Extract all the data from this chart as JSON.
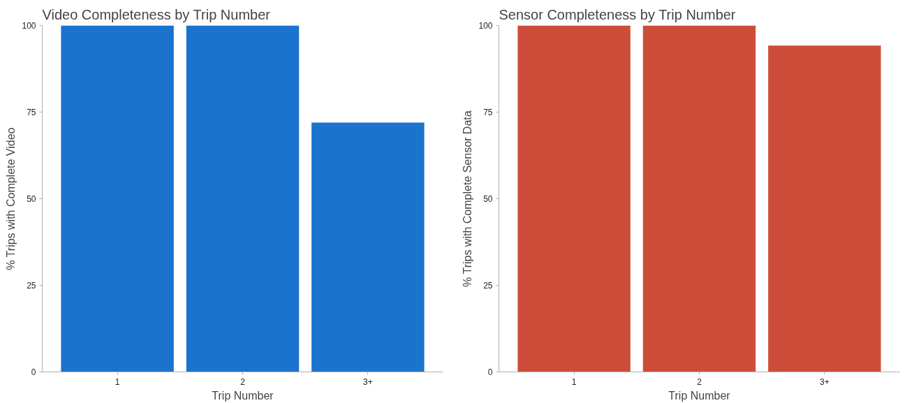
{
  "chart_data": [
    {
      "type": "bar",
      "title": "Video Completeness by Trip Number",
      "xlabel": "Trip Number",
      "ylabel": "% Trips with Complete Video",
      "categories": [
        "1",
        "2",
        "3+"
      ],
      "values": [
        100,
        100,
        72
      ],
      "color": "#1a73cc",
      "ylim": [
        0,
        100
      ],
      "yticks": [
        0,
        25,
        50,
        75,
        100
      ],
      "grid": false
    },
    {
      "type": "bar",
      "title": "Sensor Completeness by Trip Number",
      "xlabel": "Trip Number",
      "ylabel": "% Trips with Complete Sensor Data",
      "categories": [
        "1",
        "2",
        "3+"
      ],
      "values": [
        100,
        100,
        94.2
      ],
      "color": "#cc4e3a",
      "ylim": [
        0,
        100
      ],
      "yticks": [
        0,
        25,
        50,
        75,
        100
      ],
      "grid": false
    }
  ]
}
